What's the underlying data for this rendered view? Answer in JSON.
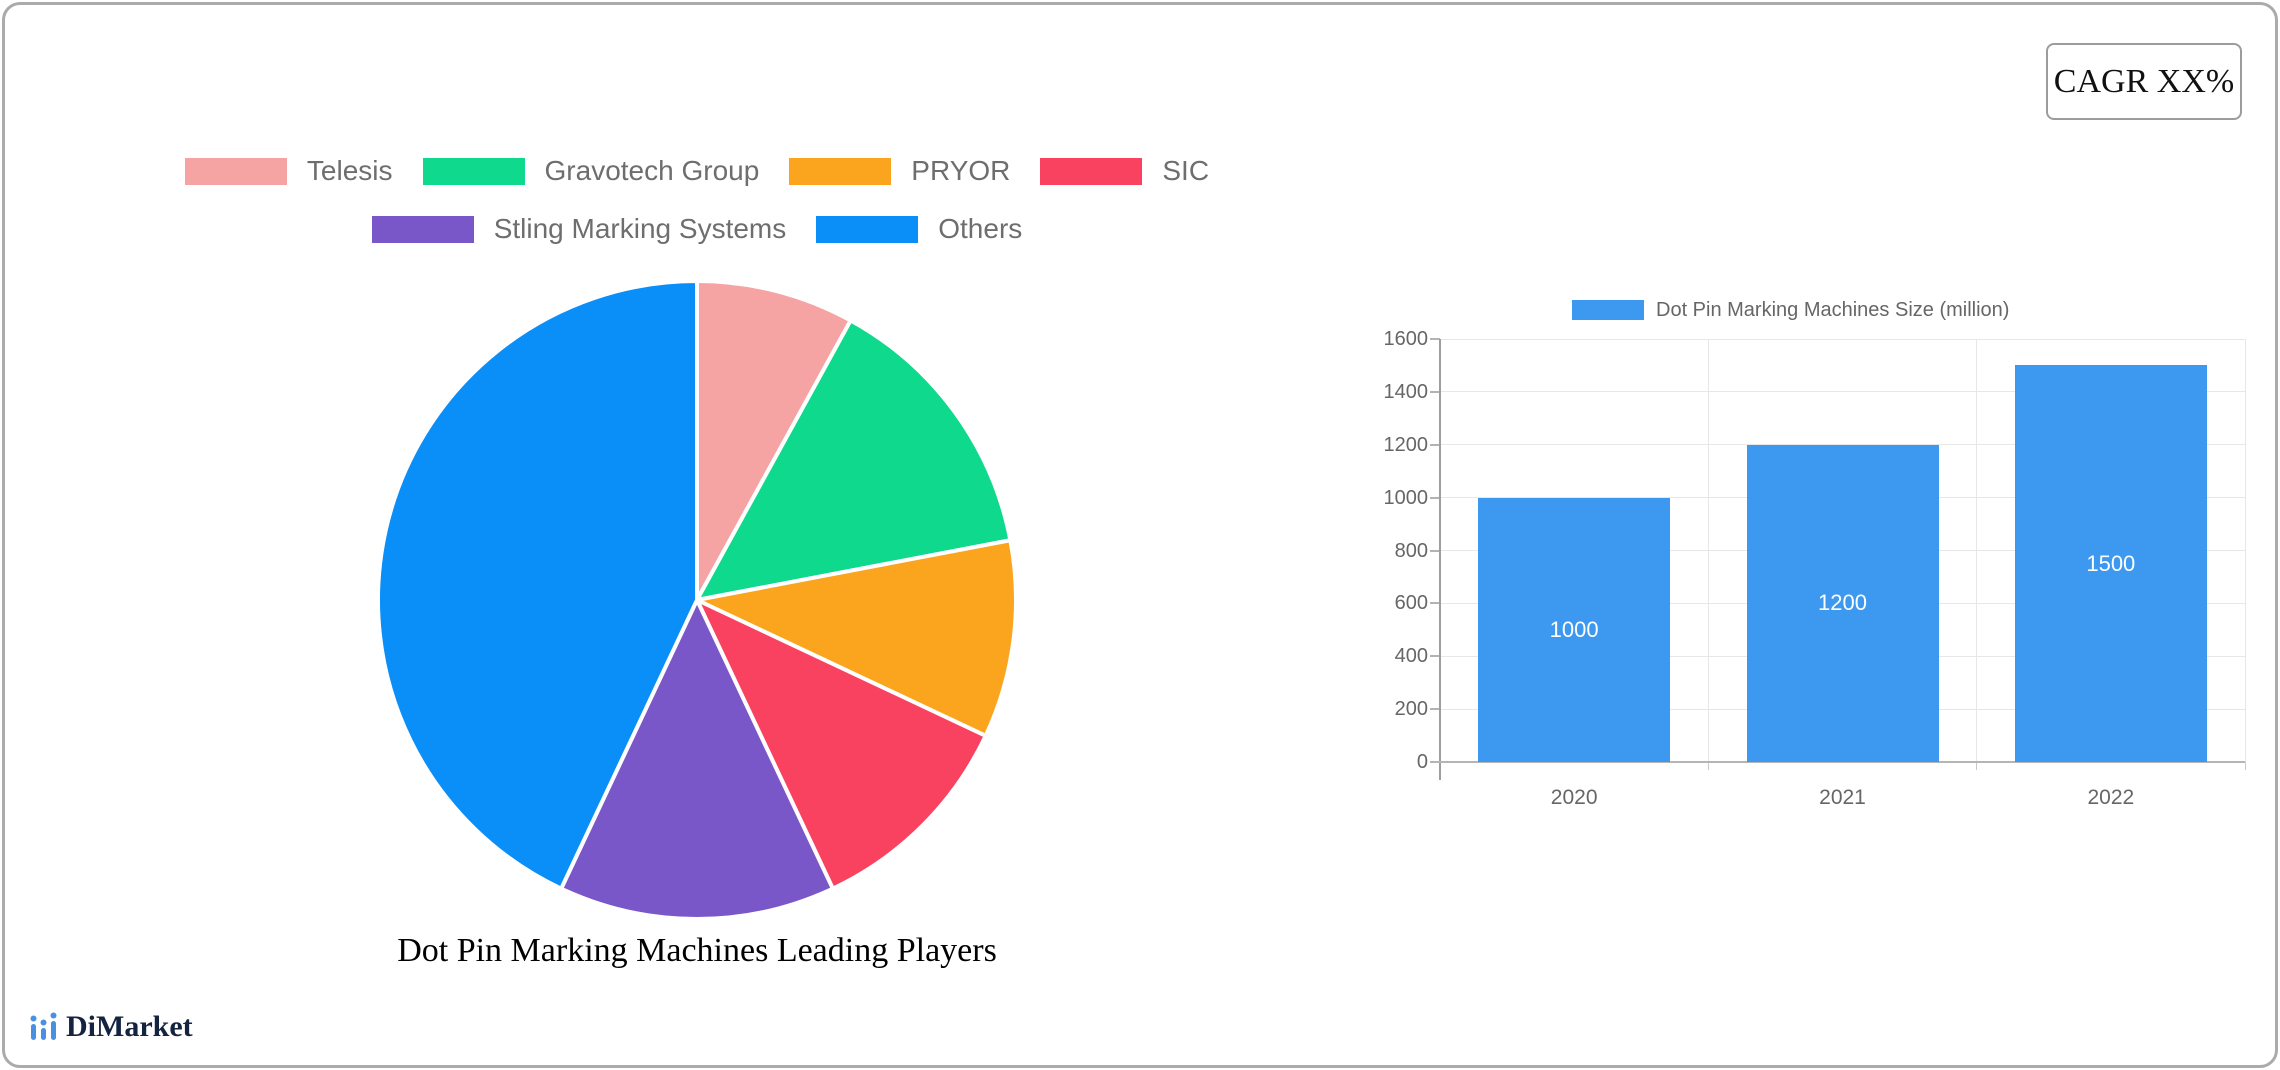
{
  "cagr_badge": "CAGR XX%",
  "brand": {
    "name": "DiMarket",
    "icon": "bar-chart-logo-icon",
    "icon_color": "#4a90e2",
    "text_color": "#142440"
  },
  "chart_data": [
    {
      "type": "pie",
      "title": "Dot Pin Marking Machines Leading Players",
      "labels": [
        "Telesis",
        "Gravotech Group",
        "PRYOR",
        "SIC",
        "Stling Marking Systems",
        "Others"
      ],
      "values": [
        8,
        14,
        10,
        11,
        14,
        43
      ],
      "unit": "% (estimated from slice angles)",
      "colors": [
        "#f5a3a3",
        "#0ed98c",
        "#faa51d",
        "#f8425f",
        "#7a57c9",
        "#0a8ef8"
      ],
      "legend_position": "top",
      "start_angle_deg": 0,
      "direction": "clockwise",
      "slice_border_color": "#ffffff"
    },
    {
      "type": "bar",
      "legend": [
        "Dot Pin Marking Machines Size (million)"
      ],
      "legend_position": "top",
      "categories": [
        "2020",
        "2021",
        "2022"
      ],
      "values": [
        1000,
        1200,
        1500
      ],
      "data_labels": [
        "1000",
        "1200",
        "1500"
      ],
      "ylim": [
        0,
        1600
      ],
      "y_ticks": [
        0,
        200,
        400,
        600,
        800,
        1000,
        1200,
        1400,
        1600
      ],
      "grid": true,
      "bar_color": "#3d98ef",
      "axis_text_color": "#666666"
    }
  ]
}
